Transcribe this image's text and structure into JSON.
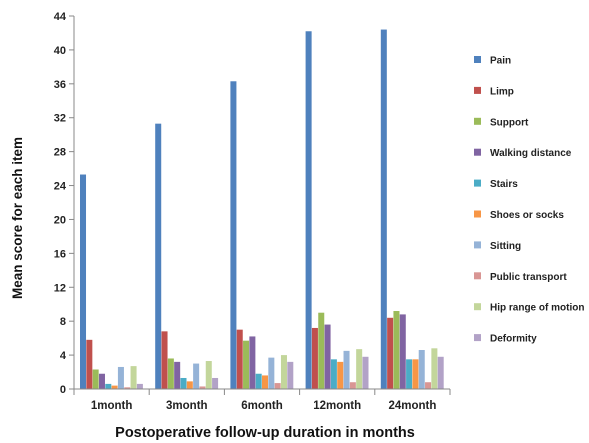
{
  "chart_data": {
    "type": "bar",
    "title": "",
    "xlabel": "Postoperative follow-up duration in months",
    "ylabel": "Mean score for each item",
    "ylim": [
      0,
      44
    ],
    "yticks": [
      0,
      4,
      8,
      12,
      16,
      20,
      24,
      28,
      32,
      36,
      40,
      44
    ],
    "grid": false,
    "legend_position": "right",
    "categories": [
      "1month",
      "3month",
      "6month",
      "12month",
      "24month"
    ],
    "series": [
      {
        "name": "Pain",
        "color": "#4F81BD",
        "values": [
          25.3,
          31.3,
          36.3,
          42.2,
          42.4
        ]
      },
      {
        "name": "Limp",
        "color": "#C0504D",
        "values": [
          5.8,
          6.8,
          7.0,
          7.2,
          8.4
        ]
      },
      {
        "name": "Support",
        "color": "#9BBB59",
        "values": [
          2.3,
          3.6,
          5.7,
          9.0,
          9.2
        ]
      },
      {
        "name": "Walking distance",
        "color": "#8064A2",
        "values": [
          1.8,
          3.2,
          6.2,
          7.6,
          8.8
        ]
      },
      {
        "name": "Stairs",
        "color": "#4BACC6",
        "values": [
          0.6,
          1.3,
          1.8,
          3.5,
          3.5
        ]
      },
      {
        "name": "Shoes or socks",
        "color": "#F79646",
        "values": [
          0.4,
          0.9,
          1.6,
          3.2,
          3.5
        ]
      },
      {
        "name": "Sitting",
        "color": "#95B3D7",
        "values": [
          2.6,
          3.0,
          3.7,
          4.5,
          4.6
        ]
      },
      {
        "name": "Public transport",
        "color": "#D99694",
        "values": [
          0.2,
          0.3,
          0.7,
          0.8,
          0.8
        ]
      },
      {
        "name": "Hip range of motion",
        "color": "#C3D69B",
        "values": [
          2.7,
          3.3,
          4.0,
          4.7,
          4.8
        ]
      },
      {
        "name": "Deformity",
        "color": "#B2A2C7",
        "values": [
          0.6,
          1.3,
          3.2,
          3.8,
          3.8
        ]
      }
    ]
  }
}
